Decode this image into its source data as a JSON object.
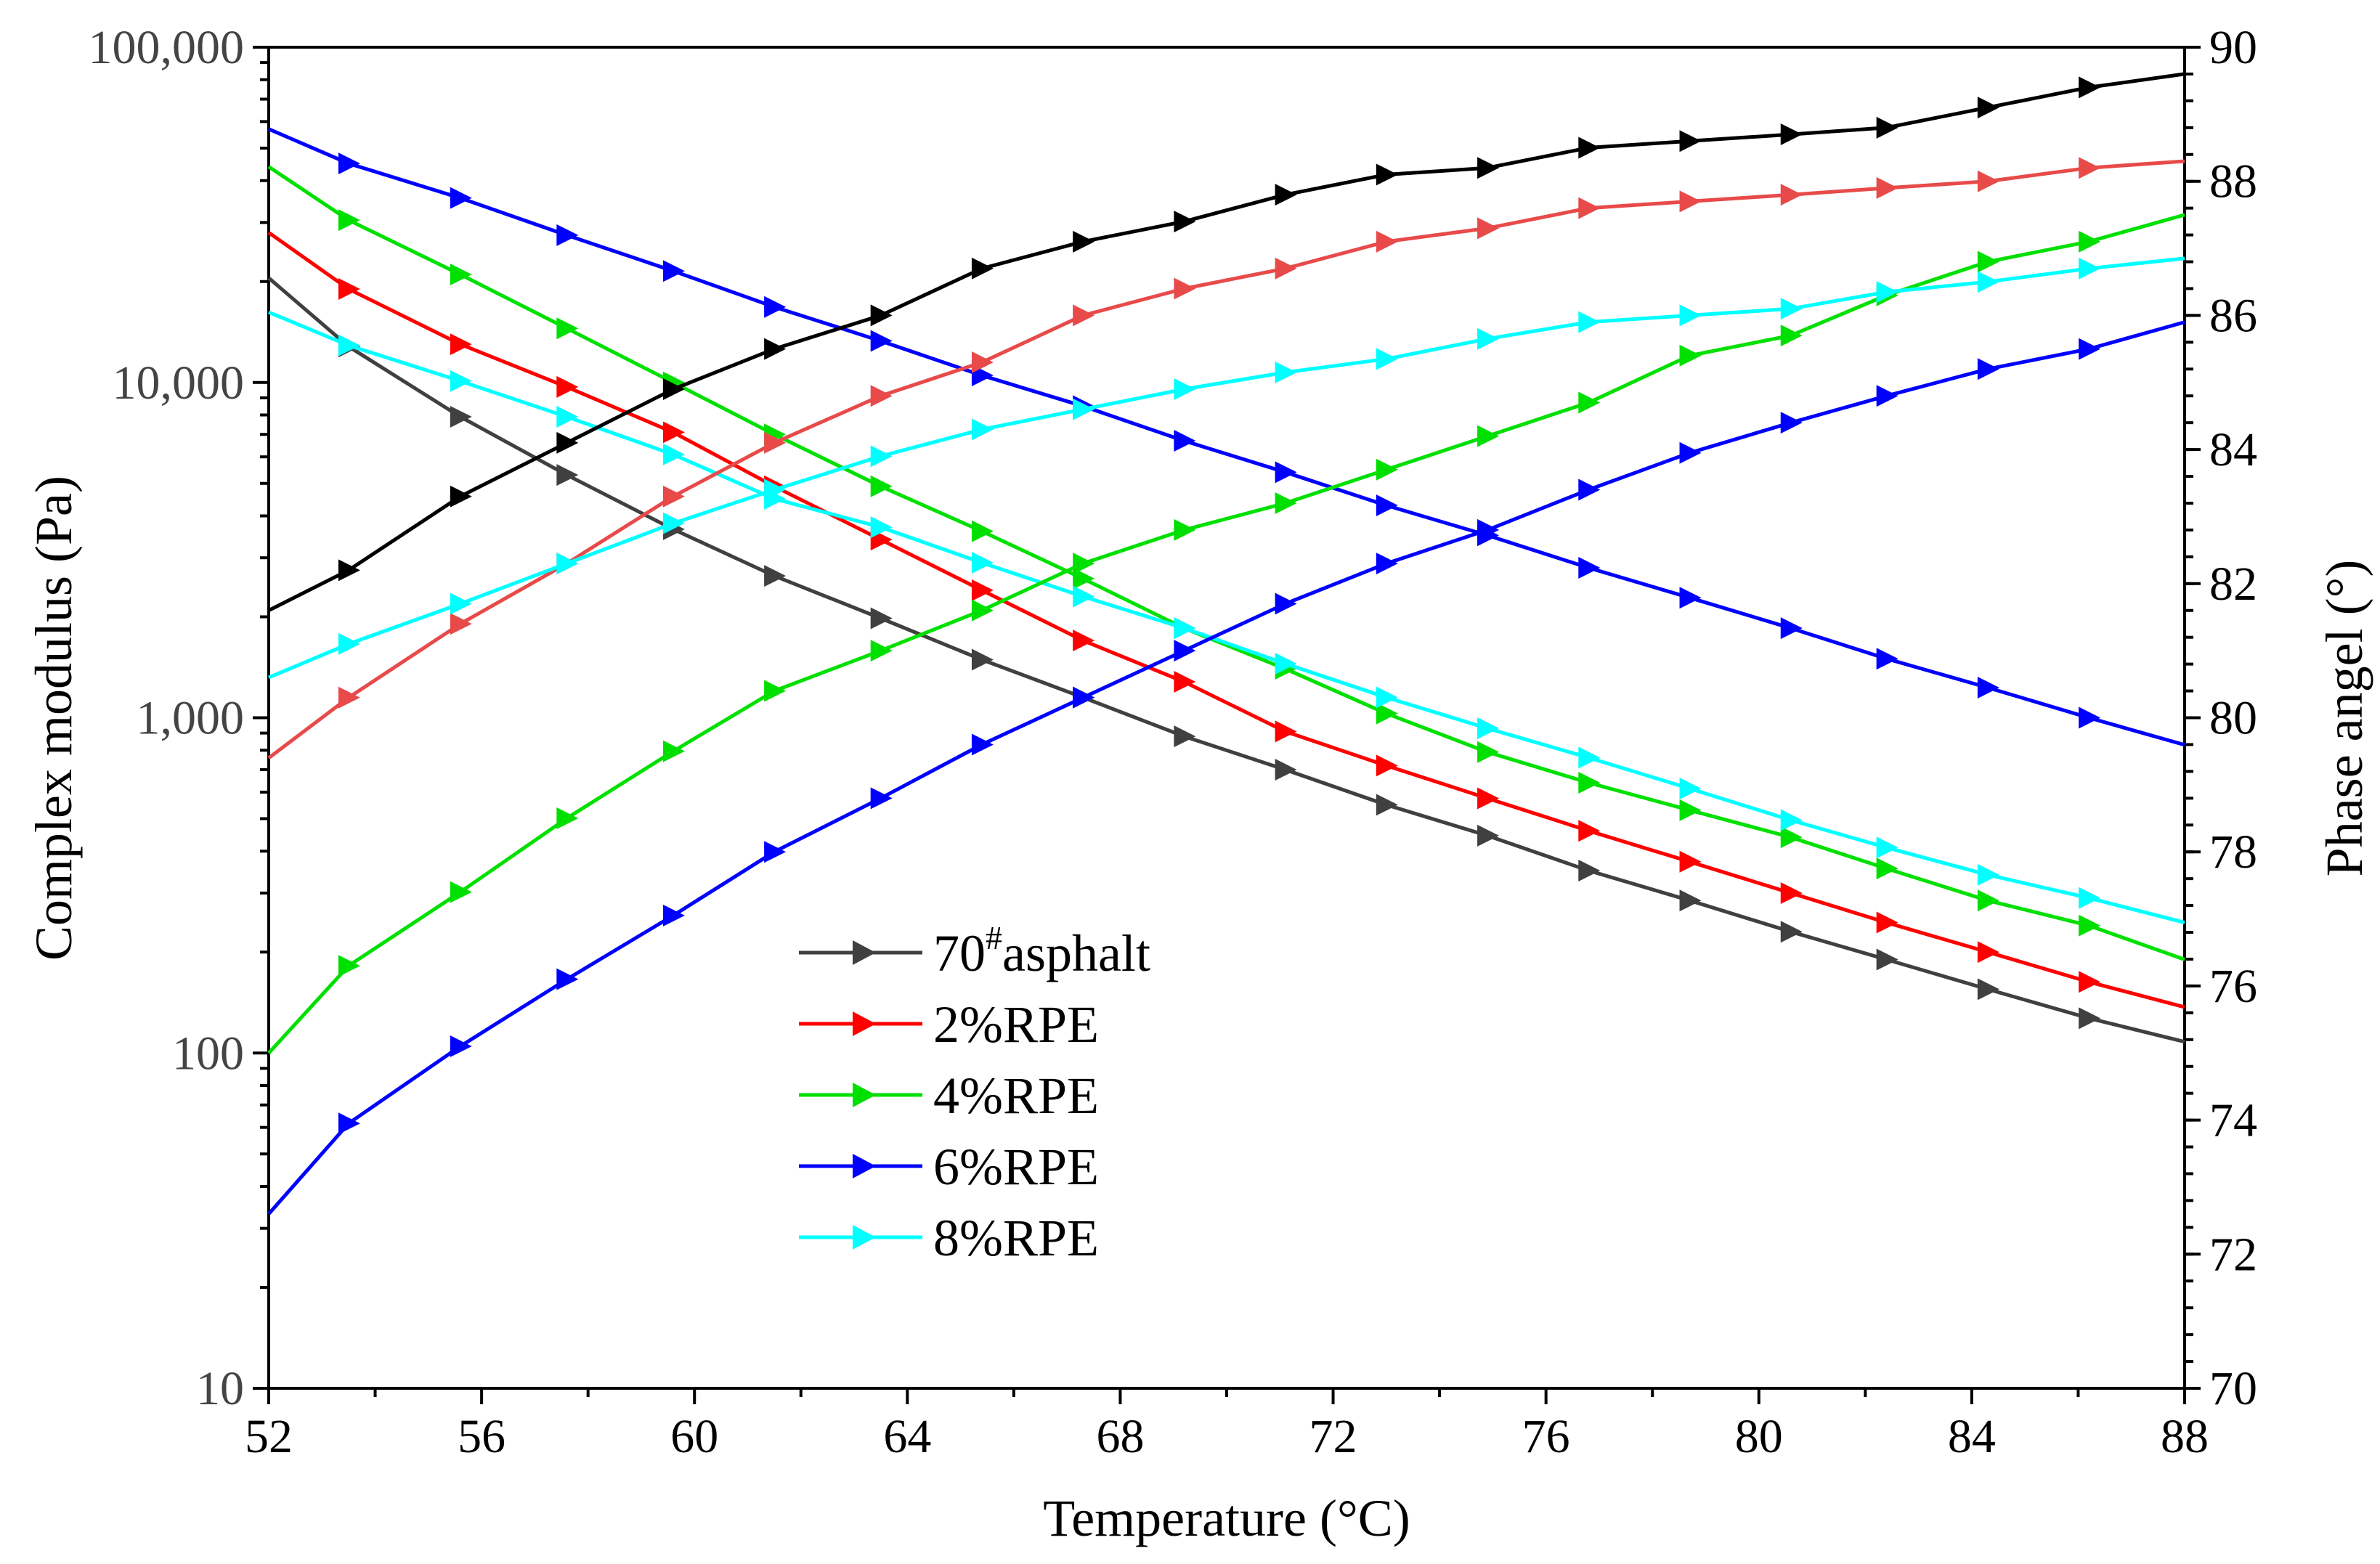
{
  "chart_data": {
    "type": "line",
    "title": "",
    "xlabel": "Temperature (°C)",
    "ylabel_left": "Complex modulus (Pa)",
    "ylabel_right": "Phase angel (°)",
    "xlim": [
      52,
      88
    ],
    "x_ticks": [
      "52",
      "56",
      "60",
      "64",
      "68",
      "72",
      "76",
      "80",
      "84",
      "88"
    ],
    "x_tick_values": [
      52,
      56,
      60,
      64,
      68,
      72,
      76,
      80,
      84,
      88
    ],
    "ylim_left_log": [
      10,
      100000
    ],
    "y_left_ticks": [
      "10",
      "100",
      "1,000",
      "10,000",
      "100,000"
    ],
    "y_left_tick_values": [
      10,
      100,
      1000,
      10000,
      100000
    ],
    "ylim_right": [
      70,
      90
    ],
    "y_right_ticks": [
      "70",
      "72",
      "74",
      "76",
      "78",
      "80",
      "82",
      "84",
      "86",
      "88",
      "90"
    ],
    "y_right_tick_values": [
      70,
      72,
      74,
      76,
      78,
      80,
      82,
      84,
      86,
      88,
      90
    ],
    "x": [
      52,
      53.5,
      55.6,
      57.6,
      59.6,
      61.5,
      63.5,
      65.4,
      67.3,
      69.2,
      71.1,
      73,
      74.9,
      76.8,
      78.7,
      80.6,
      82.4,
      84.3,
      86.2,
      88
    ],
    "legend": {
      "position": "center-left",
      "entries": [
        {
          "base": "70",
          "sup": "#",
          "rest": "asphalt",
          "color": "#404040"
        },
        {
          "label": "2%RPE",
          "color": "#ff0000"
        },
        {
          "label": "4%RPE",
          "color": "#00e000"
        },
        {
          "label": "6%RPE",
          "color": "#0000ff"
        },
        {
          "label": "8%RPE",
          "color": "#00ffff"
        }
      ]
    },
    "series": [
      {
        "name": "70#asphalt complex modulus",
        "axis": "left",
        "color": "#404040",
        "values": [
          20500,
          12800,
          7900,
          5300,
          3650,
          2650,
          1980,
          1490,
          1150,
          880,
          700,
          550,
          445,
          350,
          285,
          230,
          190,
          155,
          127,
          108
        ]
      },
      {
        "name": "2%RPE complex modulus",
        "axis": "left",
        "color": "#ff0000",
        "values": [
          28000,
          19000,
          13000,
          9700,
          7100,
          4900,
          3400,
          2400,
          1700,
          1280,
          910,
          720,
          575,
          460,
          372,
          300,
          245,
          200,
          163,
          137
        ]
      },
      {
        "name": "4%RPE complex modulus",
        "axis": "left",
        "color": "#00e000",
        "values": [
          44000,
          30500,
          21000,
          14500,
          10000,
          7000,
          4900,
          3600,
          2600,
          1850,
          1400,
          1030,
          790,
          640,
          530,
          440,
          355,
          285,
          240,
          190
        ]
      },
      {
        "name": "6%RPE complex modulus",
        "axis": "left",
        "color": "#0000ff",
        "values": [
          57000,
          45000,
          35500,
          27500,
          21500,
          16800,
          13300,
          10500,
          8500,
          6700,
          5400,
          4300,
          3500,
          2800,
          2280,
          1850,
          1500,
          1230,
          1000,
          830
        ]
      },
      {
        "name": "8%RPE complex modulus",
        "axis": "left",
        "color": "#00ffff",
        "values": [
          16200,
          12900,
          10100,
          7900,
          6100,
          4500,
          3700,
          2900,
          2300,
          1850,
          1450,
          1150,
          930,
          760,
          615,
          495,
          410,
          340,
          290,
          245
        ]
      },
      {
        "name": "70#asphalt phase angle",
        "axis": "right",
        "color": "#000000",
        "values": [
          81.6,
          82.2,
          83.3,
          84.1,
          84.9,
          85.5,
          86.0,
          86.7,
          87.1,
          87.4,
          87.8,
          88.1,
          88.2,
          88.5,
          88.6,
          88.7,
          88.8,
          89.1,
          89.4,
          89.6
        ]
      },
      {
        "name": "2%RPE phase angle",
        "axis": "right",
        "color": "#e84a4a",
        "values": [
          79.4,
          80.3,
          81.4,
          82.3,
          83.3,
          84.1,
          84.8,
          85.3,
          86.0,
          86.4,
          86.7,
          87.1,
          87.3,
          87.6,
          87.7,
          87.8,
          87.9,
          88.0,
          88.2,
          88.3
        ]
      },
      {
        "name": "4%RPE phase angle",
        "axis": "right",
        "color": "#00e000",
        "values": [
          75.0,
          76.3,
          77.4,
          78.5,
          79.5,
          80.4,
          81.0,
          81.6,
          82.3,
          82.8,
          83.2,
          83.7,
          84.2,
          84.7,
          85.4,
          85.7,
          86.3,
          86.8,
          87.1,
          87.5
        ]
      },
      {
        "name": "6%RPE phase angle",
        "axis": "right",
        "color": "#0000ff",
        "values": [
          72.6,
          73.95,
          75.1,
          76.1,
          77.05,
          78.0,
          78.8,
          79.6,
          80.3,
          81.0,
          81.7,
          82.3,
          82.8,
          83.4,
          83.95,
          84.4,
          84.8,
          85.2,
          85.5,
          85.9
        ]
      },
      {
        "name": "8%RPE phase angle",
        "axis": "right",
        "color": "#00ffff",
        "values": [
          80.6,
          81.1,
          81.7,
          82.3,
          82.9,
          83.4,
          83.9,
          84.3,
          84.6,
          84.9,
          85.15,
          85.35,
          85.65,
          85.9,
          86.0,
          86.1,
          86.35,
          86.5,
          86.7,
          86.85
        ]
      }
    ]
  }
}
